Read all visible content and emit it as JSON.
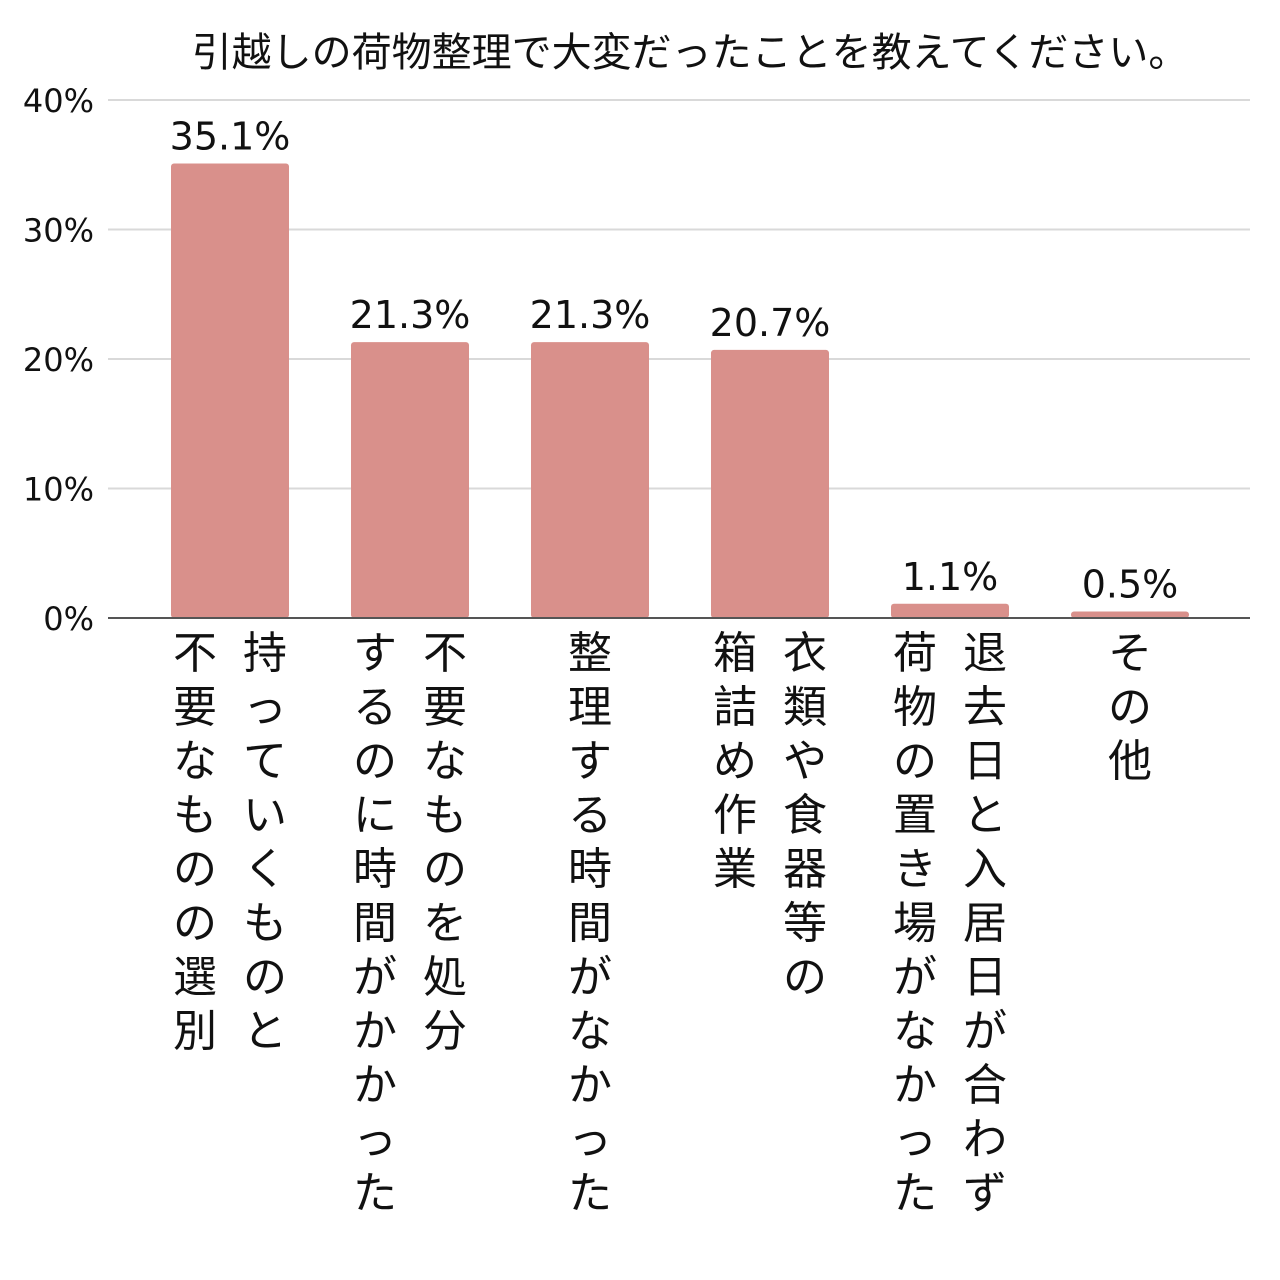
{
  "chart_data": {
    "type": "bar",
    "title": "引越しの荷物整理で大変だったことを教えてください。",
    "xlabel": "",
    "ylabel": "",
    "categories": [
      "持っていくものと不要なものの選別",
      "不要なものを処分するのに時間がかかった",
      "整理する時間がなかった",
      "衣類や食器等の箱詰め作業",
      "退去日と入居日が合わず荷物の置き場がなかった",
      "その他"
    ],
    "values": [
      35.1,
      21.3,
      21.3,
      20.7,
      1.1,
      0.5
    ],
    "value_labels": [
      "35.1%",
      "21.3%",
      "21.3%",
      "20.7%",
      "1.1%",
      "0.5%"
    ],
    "category_label_lines": [
      [
        "持っていくものと",
        "不要なものの選別"
      ],
      [
        "不要なものを処分",
        "するのに時間がかかった"
      ],
      [
        "整理する時間がなかった"
      ],
      [
        "衣類や食器等の",
        "箱詰め作業"
      ],
      [
        "退去日と入居日が合わず",
        "荷物の置き場がなかった"
      ],
      [
        "その他"
      ]
    ],
    "y_ticks": [
      0,
      10,
      20,
      30,
      40
    ],
    "y_tick_labels": [
      "0%",
      "10%",
      "20%",
      "30%",
      "40%"
    ],
    "ylim": [
      0,
      40
    ],
    "grid": true,
    "legend": "none",
    "bar_color": "#d9908b",
    "grid_color": "#d9d9d9",
    "axis_color": "#555555"
  }
}
